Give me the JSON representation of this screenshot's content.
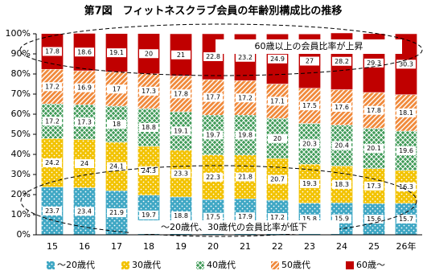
{
  "chart_data": {
    "type": "stacked_bar",
    "title": "第7図　フィットネスクラブ会員の年齢別構成比の推移",
    "categories": [
      "15",
      "16",
      "17",
      "18",
      "19",
      "20",
      "21",
      "22",
      "23",
      "24",
      "25",
      "26年"
    ],
    "series": [
      {
        "name": "～20歳代",
        "color": "#3fa7c4",
        "values": [
          23.7,
          23.4,
          21.9,
          19.7,
          18.8,
          17.5,
          17.9,
          17.2,
          15.8,
          15.9,
          15.6,
          15.7
        ]
      },
      {
        "name": "30歳代",
        "color": "#f2c200",
        "values": [
          24.2,
          24.0,
          24.1,
          24.3,
          23.3,
          22.3,
          21.8,
          20.7,
          19.3,
          18.3,
          17.3,
          16.3
        ]
      },
      {
        "name": "40歳代",
        "color": "#3f9a57",
        "values": [
          17.2,
          17.3,
          18.0,
          18.8,
          19.1,
          19.7,
          19.8,
          20.0,
          20.3,
          20.4,
          20.1,
          19.6
        ]
      },
      {
        "name": "50歳代",
        "color": "#f08a3c",
        "values": [
          17.2,
          16.9,
          17.0,
          17.3,
          17.8,
          17.7,
          17.2,
          17.1,
          17.5,
          17.6,
          17.8,
          18.1
        ]
      },
      {
        "name": "60歳～",
        "color": "#c00000",
        "values": [
          17.8,
          18.6,
          19.1,
          20.0,
          21.0,
          22.8,
          23.2,
          24.9,
          27.0,
          28.2,
          29.3,
          30.3
        ]
      }
    ],
    "ylim": [
      0,
      100
    ],
    "yticks": [
      {
        "value": 0,
        "label": "0%"
      },
      {
        "value": 10,
        "label": "10%"
      },
      {
        "value": 20,
        "label": "20%"
      },
      {
        "value": 30,
        "label": "30%"
      },
      {
        "value": 40,
        "label": "40%"
      },
      {
        "value": 50,
        "label": "50%"
      },
      {
        "value": 60,
        "label": "60%"
      },
      {
        "value": 70,
        "label": "70%"
      },
      {
        "value": 80,
        "label": "80%"
      },
      {
        "value": 90,
        "label": "90%"
      },
      {
        "value": 100,
        "label": "100%"
      }
    ],
    "annotations": [
      "60歳以上の会員比率が上昇",
      "～20歳代、30歳代の会員比率が低下"
    ]
  }
}
